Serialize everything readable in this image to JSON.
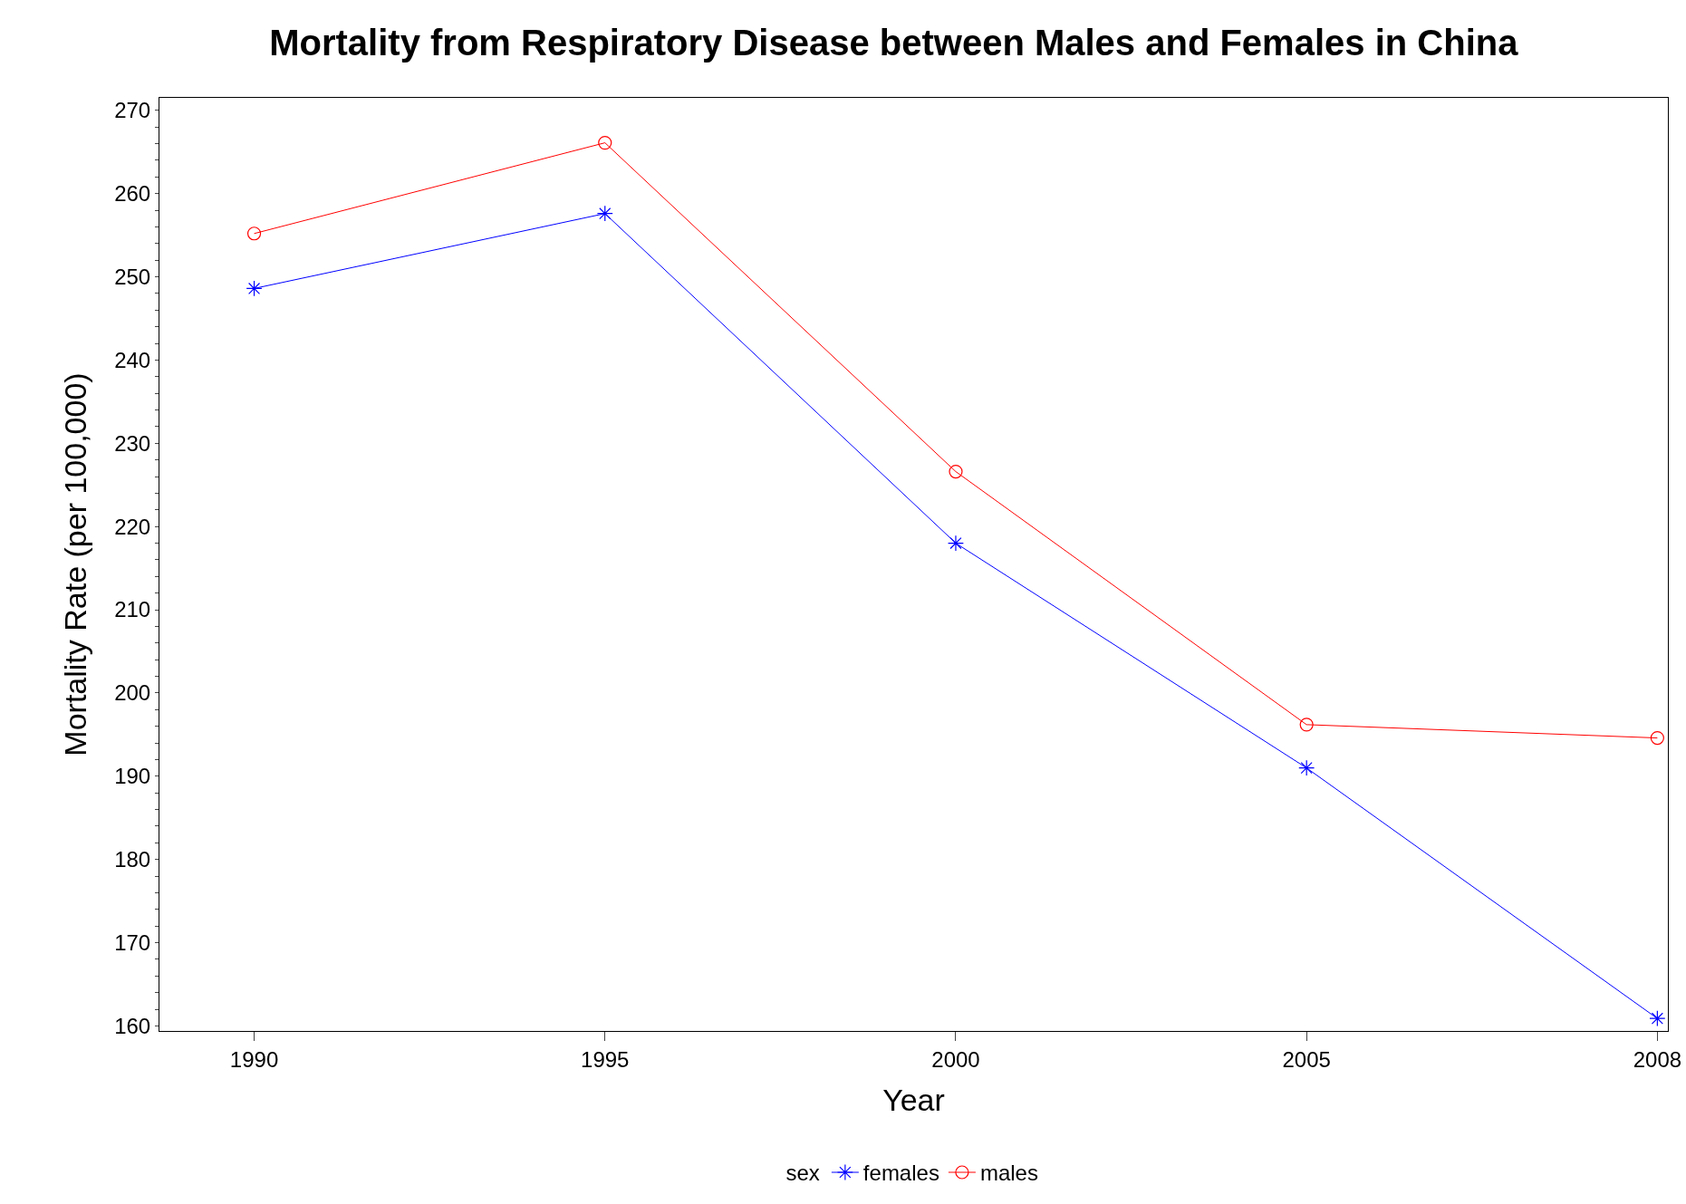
{
  "chart_data": {
    "type": "line",
    "title": "Mortality from Respiratory Disease between Males and Females in China",
    "xlabel": "Year",
    "ylabel": "Mortality Rate (per 100,000)",
    "legend_title": "sex",
    "categories": [
      "1990",
      "1995",
      "2000",
      "2005",
      "2008"
    ],
    "series": [
      {
        "name": "females",
        "color": "#0000ff",
        "marker": "cross",
        "values": [
          248.6,
          257.6,
          218,
          191,
          160.9
        ]
      },
      {
        "name": "males",
        "color": "#ff0000",
        "marker": "circle",
        "values": [
          255.2,
          266.1,
          226.6,
          196.2,
          194.6
        ]
      }
    ],
    "ylim": [
      159.4,
      271.5
    ],
    "yticks": [
      160,
      170,
      180,
      190,
      200,
      210,
      220,
      230,
      240,
      250,
      260,
      270
    ],
    "grid": false,
    "legend": "bottom",
    "line_style": "solid"
  }
}
